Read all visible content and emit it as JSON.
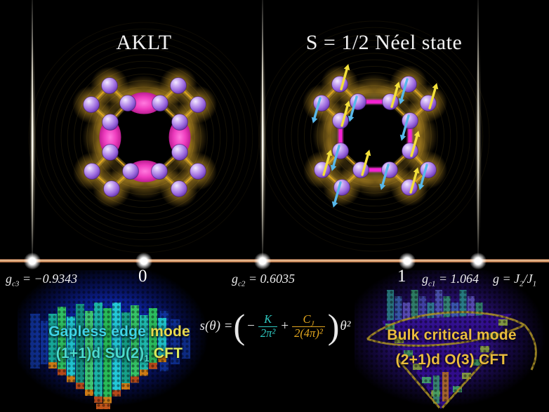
{
  "titles": {
    "left": "AKLT",
    "right": "S = 1/2 Néel state"
  },
  "axis": {
    "gc3": {
      "base": "g",
      "sub": "c3",
      "rest": " = −0.9343"
    },
    "zero": "0",
    "gc2": {
      "base": "g",
      "sub": "c2",
      "rest": " = 0.6035"
    },
    "one": "1",
    "gc1": {
      "base": "g",
      "sub": "c1",
      "rest": " = 1.064"
    },
    "gvar": {
      "base": "g",
      "eq": " = ",
      "j2": "J",
      "j2sub": "2",
      "slash": "/",
      "j1": "J",
      "j1sub": "1"
    }
  },
  "equation": {
    "lhs": "s(θ) = ",
    "open": "(",
    "minus": "−",
    "frac1_num": "K",
    "frac1_den": "2π²",
    "plus": "+",
    "frac2_num_base": "C",
    "frac2_num_sub": "J",
    "frac2_den": "2(4π)²",
    "close": ")",
    "rhs": "θ²"
  },
  "annotations": {
    "left": {
      "line1_a": "Gapless edge ",
      "line1_b": "mode",
      "line2_pre": "(1+1)d SU(2)",
      "line2_sub": "1",
      "line2_post": " CFT"
    },
    "right": {
      "line1": "Bulk critical mode",
      "line2": "(2+1)d O(3) CFT"
    }
  },
  "lattice": {
    "nodes": {
      "A": [
        -49,
        -74
      ],
      "B": [
        -23,
        -49
      ],
      "C": [
        23,
        -49
      ],
      "D": [
        49,
        -74
      ],
      "E": [
        77,
        -47
      ],
      "F": [
        51,
        -22
      ],
      "G": [
        51,
        21
      ],
      "H": [
        77,
        48
      ],
      "I": [
        50,
        73
      ],
      "J": [
        22,
        48
      ],
      "K": [
        -19,
        48
      ],
      "L": [
        -46,
        73
      ],
      "M": [
        -74,
        48
      ],
      "N": [
        -48,
        21
      ],
      "O": [
        -48,
        -22
      ],
      "P": [
        -75,
        -47
      ]
    },
    "edges": [
      [
        "A",
        "B"
      ],
      [
        "A",
        "P"
      ],
      [
        "B",
        "O"
      ],
      [
        "P",
        "O"
      ],
      [
        "C",
        "D"
      ],
      [
        "D",
        "E"
      ],
      [
        "C",
        "F"
      ],
      [
        "E",
        "F"
      ],
      [
        "G",
        "H"
      ],
      [
        "H",
        "I"
      ],
      [
        "I",
        "J"
      ],
      [
        "J",
        "G"
      ],
      [
        "K",
        "L"
      ],
      [
        "L",
        "M"
      ],
      [
        "M",
        "N"
      ],
      [
        "N",
        "K"
      ]
    ],
    "dimers": [
      [
        "B",
        "C"
      ],
      [
        "F",
        "G"
      ],
      [
        "J",
        "K"
      ],
      [
        "N",
        "O"
      ]
    ],
    "spin_up": [
      "A",
      "C",
      "E",
      "G",
      "I",
      "K",
      "M",
      "O"
    ]
  },
  "colors": {
    "axis_line": "#e5aa78",
    "critical_string": "#fff6dc",
    "sphere_purple": "#9a67dd",
    "bond_gold": "#e9b02a",
    "dimer_pink": "#ee3cbe",
    "loop_magenta": "#f322d2",
    "spin_up_yellow": "#f2df3a",
    "spin_down_blue": "#58b8ea",
    "equation_teal": "#2fc8c0",
    "equation_gold": "#e2a61e",
    "left_annotation_cyan": "#3ed3e6",
    "left_annotation_yellow": "#e9d94d",
    "right_annotation_gold": "#eabd3e",
    "heatmap_left_blue": "#0f2cb0",
    "heatmap_right_purple": "#3c16a0"
  }
}
